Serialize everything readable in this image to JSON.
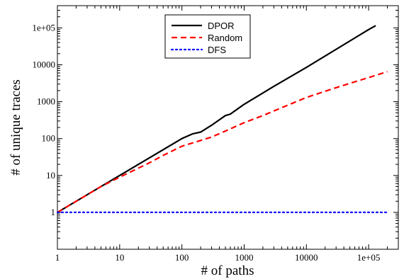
{
  "chart_data": {
    "type": "line",
    "title": "",
    "xlabel": "# of paths",
    "ylabel": "# of unique traces",
    "xscale": "log",
    "yscale": "log",
    "xlim": [
      1,
      300000
    ],
    "ylim": [
      0.1,
      400000
    ],
    "x_ticks": [
      {
        "value": 1,
        "label": "1"
      },
      {
        "value": 10,
        "label": "10"
      },
      {
        "value": 100,
        "label": "100"
      },
      {
        "value": 1000,
        "label": "1000"
      },
      {
        "value": 10000,
        "label": "10000"
      },
      {
        "value": 100000,
        "label": "1e+05"
      }
    ],
    "y_ticks": [
      {
        "value": 1,
        "label": "1"
      },
      {
        "value": 10,
        "label": "10"
      },
      {
        "value": 100,
        "label": "100"
      },
      {
        "value": 1000,
        "label": "1000"
      },
      {
        "value": 10000,
        "label": "10000"
      },
      {
        "value": 100000,
        "label": "1e+05"
      }
    ],
    "grid": false,
    "legend_position": "top-center",
    "series": [
      {
        "name": "DPOR",
        "color": "#000000",
        "style": "solid",
        "x": [
          1,
          10,
          100,
          150,
          200,
          300,
          500,
          600,
          800,
          1000,
          3000,
          10000,
          100000,
          130000
        ],
        "y": [
          1,
          10,
          100,
          135,
          150,
          230,
          420,
          460,
          650,
          850,
          2600,
          8500,
          90000,
          115000
        ]
      },
      {
        "name": "Random",
        "color": "#ff0000",
        "style": "dashed",
        "x": [
          1,
          5,
          10,
          30,
          50,
          100,
          300,
          500,
          1000,
          2000,
          3000,
          10000,
          30000,
          100000,
          200000
        ],
        "y": [
          1,
          5,
          9,
          22,
          35,
          62,
          110,
          160,
          270,
          420,
          560,
          1300,
          2400,
          4500,
          6500
        ]
      },
      {
        "name": "DFS",
        "color": "#0000ff",
        "style": "dotted",
        "x": [
          1,
          200000
        ],
        "y": [
          1,
          1
        ]
      }
    ]
  }
}
